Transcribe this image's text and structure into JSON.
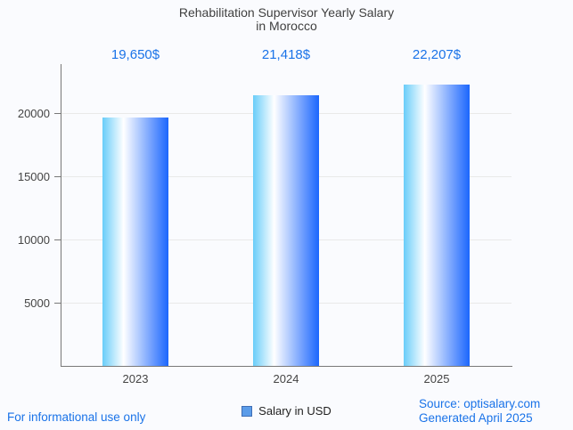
{
  "title": {
    "line1": "Rehabilitation Supervisor Yearly Salary",
    "line2": "in Morocco"
  },
  "chart_data": {
    "type": "bar",
    "title": "Rehabilitation Supervisor Yearly Salary in Morocco",
    "categories": [
      "2023",
      "2024",
      "2025"
    ],
    "series": [
      {
        "name": "Salary in USD",
        "values": [
          19650,
          21418,
          22207
        ]
      }
    ],
    "value_labels": [
      "19,650$",
      "21,418$",
      "22,207$"
    ],
    "xlabel": "",
    "ylabel": "",
    "ylim": [
      0,
      23860
    ],
    "yticks": [
      5000,
      10000,
      15000,
      20000
    ],
    "ytick_labels": [
      "5000",
      "10000",
      "15000",
      "20000"
    ],
    "grid": true,
    "legend_position": "bottom"
  },
  "legend": {
    "label": "Salary in USD"
  },
  "footer": {
    "disclaimer": "For informational use only",
    "source": "Source: optisalary.com",
    "generated": "Generated April 2025"
  },
  "colors": {
    "bg": "#fafbfe",
    "title-color": "#404040",
    "axis-color": "#787878",
    "grid-color": "#e9e9e9",
    "axis-text": "#444444",
    "accent": "#1a73e8",
    "bar-left": "#69cdf9",
    "bar-mid": "#ffffff",
    "bar-right": "#1b66fd",
    "legend-fill": "#5b9ce9",
    "legend-border": "#3f6eb5"
  }
}
